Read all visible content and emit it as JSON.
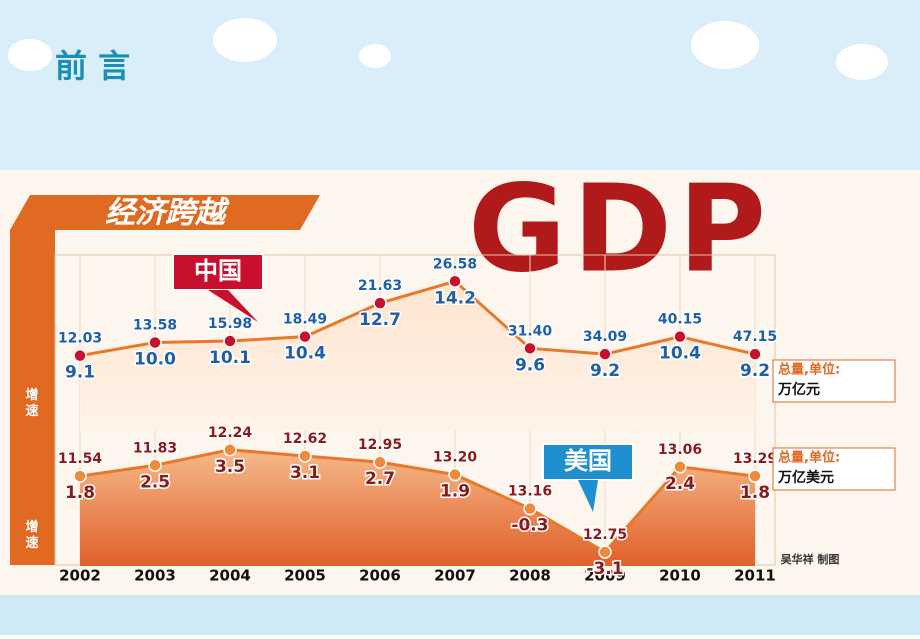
{
  "slide_title": "前 言",
  "chart_data": {
    "type": "line",
    "banner": "经济跨越",
    "headline": "GDP",
    "credit": "吴华祥 制图",
    "categories": [
      "2002",
      "2003",
      "2004",
      "2005",
      "2006",
      "2007",
      "2008",
      "2009",
      "2010",
      "2011"
    ],
    "ylim": [
      4,
      16
    ],
    "y2lim": [
      -4,
      6
    ],
    "series": [
      {
        "name": "中国",
        "color": "#e8782a",
        "label_color": "#1f5fa8",
        "growth_label": "增速",
        "total_caption": "总量,单位:",
        "total_unit": "万亿元",
        "values": [
          9.1,
          10.0,
          10.1,
          10.4,
          12.7,
          14.2,
          9.6,
          9.2,
          10.4,
          9.2
        ],
        "value_labels": [
          "9.1",
          "10.0",
          "10.1",
          "10.4",
          "12.7",
          "14.2",
          "9.6",
          "9.2",
          "10.4",
          "9.2"
        ],
        "totals": [
          12.03,
          13.58,
          15.98,
          18.49,
          21.63,
          26.58,
          31.4,
          34.09,
          40.15,
          47.15
        ],
        "total_labels": [
          "12.03",
          "13.58",
          "15.98",
          "18.49",
          "21.63",
          "26.58",
          "31.40",
          "34.09",
          "40.15",
          "47.15"
        ]
      },
      {
        "name": "美国",
        "color": "#e8782a",
        "label_color": "#8b1a1a",
        "axis": "y2",
        "growth_label": "增速",
        "total_caption": "总量,单位:",
        "total_unit": "万亿美元",
        "values": [
          1.8,
          2.5,
          3.5,
          3.1,
          2.7,
          1.9,
          -0.3,
          -3.1,
          2.4,
          1.8
        ],
        "value_labels": [
          "1.8",
          "2.5",
          "3.5",
          "3.1",
          "2.7",
          "1.9",
          "-0.3",
          "-3.1",
          "2.4",
          "1.8"
        ],
        "totals": [
          11.54,
          11.83,
          12.24,
          12.62,
          12.95,
          13.2,
          13.16,
          12.75,
          13.06,
          13.29
        ],
        "total_labels": [
          "11.54",
          "11.83",
          "12.24",
          "12.62",
          "12.95",
          "13.20",
          "13.16",
          "12.75",
          "13.06",
          "13.29"
        ]
      }
    ]
  }
}
